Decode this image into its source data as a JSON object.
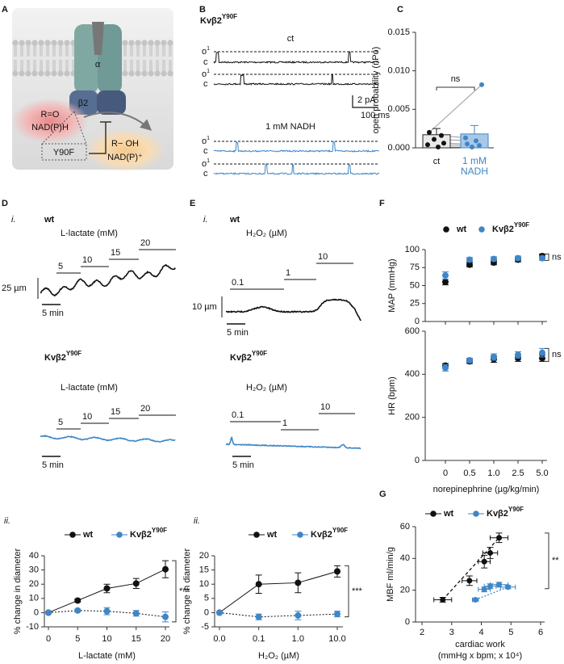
{
  "figure": {
    "panels": [
      "A",
      "B",
      "C",
      "D",
      "E",
      "F",
      "G"
    ],
    "A": {
      "alpha": "α",
      "beta": "β2",
      "substrate": "R=O",
      "cofactor": "NAD(P)H",
      "mutation": "Y90F",
      "product": "R− OH",
      "product_cofactor": "NAD(P)⁺"
    },
    "B": {
      "title": "Kvβ2",
      "title_sup": "Y90F",
      "control": "ct",
      "treatment": "1 mM NADH",
      "open": "o",
      "open_sub": "1",
      "closed": "c",
      "current_scale": "2 pA",
      "time_scale": "100 ms"
    },
    "D": {
      "part_i": "i.",
      "part_ii": "ii.",
      "wt": "wt",
      "mutant": "Kvβ2",
      "mutant_sup": "Y90F",
      "stimulus": "L-lactate (mM)",
      "steps": [
        "5",
        "10",
        "15",
        "20"
      ],
      "diameter_scale": "25 µm",
      "time_scale": "5 min"
    },
    "E": {
      "part_i": "i.",
      "part_ii": "ii.",
      "wt": "wt",
      "mutant": "Kvβ2",
      "mutant_sup": "Y90F",
      "stimulus": "H₂O₂ (µM)",
      "steps": [
        "0.1",
        "1",
        "10"
      ],
      "diameter_scale": "10 µm",
      "time_scale": "5 min"
    }
  },
  "chart_data": [
    {
      "type": "bar",
      "ylabel": "open probability (nPo)",
      "categories": [
        "ct",
        "1 mM NADH"
      ],
      "values": [
        0.0017,
        0.0018
      ],
      "errors": [
        0.0008,
        0.0011
      ],
      "points": [
        [
          0.002,
          0.0016,
          0.0011,
          0.0006,
          0.0004,
          0.0001
        ],
        [
          0.0082,
          0.0013,
          0.0009,
          0.0005,
          0.0003,
          0.0001
        ]
      ],
      "bar_colors": [
        "#e9e9e9",
        "#a9c8e6"
      ],
      "edge_colors": [
        "#222222",
        "#3f86c6"
      ],
      "point_colors": [
        "#111111",
        "#3f86c6"
      ],
      "ylim": [
        0,
        0.015
      ],
      "yticks": [
        {
          "value": 0,
          "label": "0.000"
        },
        0.005,
        {
          "value": 0.01,
          "label": "0.010"
        },
        0.015
      ],
      "annotation": "ns"
    },
    {
      "type": "line",
      "xlabel": "L-lactate (mM)",
      "ylabel": "% change in diameter",
      "x": [
        0,
        5,
        10,
        15,
        20
      ],
      "xlim": [
        0,
        20
      ],
      "xticks": [
        0,
        5,
        10,
        15,
        20
      ],
      "ylim": [
        -10,
        40
      ],
      "yticks": [
        -10,
        0,
        10,
        20,
        30,
        40
      ],
      "series": [
        {
          "name": "wt",
          "color": "#111111",
          "line_style": "solid",
          "values": [
            0,
            8.5,
            17,
            20.5,
            30.5
          ],
          "errors": [
            0,
            1,
            3,
            3.5,
            6
          ]
        },
        {
          "name": "Kvβ2",
          "name_sup": "Y90F",
          "color": "#3f86c6",
          "line_style": "dotted",
          "values": [
            0,
            1.5,
            1,
            -0.5,
            -3
          ],
          "errors": [
            0,
            1,
            2.5,
            2,
            3.5
          ]
        }
      ],
      "annotation": "***"
    },
    {
      "type": "line",
      "xlabel": "H₂O₂ (µM)",
      "ylabel": "% change in diameter",
      "categories": [
        "0.0",
        "0.1",
        "1.0",
        "10.0"
      ],
      "ylim": [
        -5,
        20
      ],
      "yticks": [
        -5,
        0,
        5,
        10,
        15,
        20
      ],
      "series": [
        {
          "name": "wt",
          "color": "#111111",
          "line_style": "solid",
          "values": [
            0,
            10,
            10.5,
            14.5
          ],
          "errors": [
            0,
            3.2,
            3.5,
            2
          ]
        },
        {
          "name": "Kvβ2",
          "name_sup": "Y90F",
          "color": "#3f86c6",
          "line_style": "dotted",
          "values": [
            0,
            -1.5,
            -1,
            -0.5
          ],
          "errors": [
            0,
            1,
            1.5,
            1
          ]
        }
      ],
      "annotation": "***"
    },
    {
      "type": "line",
      "ylabel": "MAP (mmHg)",
      "categories": [
        null,
        null,
        null,
        null,
        null
      ],
      "ylim": [
        0,
        100
      ],
      "yticks": [
        0,
        25,
        50,
        75,
        100
      ],
      "series": [
        {
          "name": "wt",
          "color": "#111111",
          "line_style": "none",
          "values": [
            55,
            79,
            82,
            86,
            91
          ],
          "errors": [
            4,
            3,
            3,
            3,
            3
          ]
        },
        {
          "name": "Kvβ2",
          "name_sup": "Y90F",
          "color": "#3f86c6",
          "line_style": "none",
          "values": [
            64,
            86,
            87,
            88,
            88
          ],
          "errors": [
            5,
            3,
            3,
            3,
            3
          ]
        }
      ],
      "annotation": "ns"
    },
    {
      "type": "line",
      "xlabel": "norepinephrine (µg/kg/min)",
      "ylabel": "HR (bpm)",
      "categories": [
        "0",
        "0.5",
        "1.0",
        "2.5",
        "5.0"
      ],
      "ylim": [
        0,
        600
      ],
      "yticks": [
        0,
        200,
        400,
        600
      ],
      "series": [
        {
          "color": "#111111",
          "line_style": "none",
          "values": [
            440,
            460,
            470,
            475,
            475
          ],
          "errors": [
            10,
            10,
            15,
            15,
            15
          ]
        },
        {
          "color": "#3f86c6",
          "line_style": "none",
          "values": [
            430,
            465,
            480,
            490,
            500
          ],
          "errors": [
            15,
            10,
            15,
            15,
            20
          ]
        }
      ],
      "annotation": "ns"
    },
    {
      "type": "scatter",
      "xlabel": "cardiac work",
      "xlabel_note": "(mmHg x bpm; x 10⁴)",
      "ylabel": "MBF ml/min/g",
      "xlim": [
        2,
        6
      ],
      "xticks": [
        2,
        3,
        4,
        5,
        6
      ],
      "ylim": [
        0,
        60
      ],
      "yticks": [
        0,
        20,
        40,
        60
      ],
      "series": [
        {
          "name": "wt",
          "color": "#111111",
          "line_style": "dashed",
          "x": [
            2.7,
            3.6,
            4.1,
            4.3,
            4.6
          ],
          "values": [
            14,
            26,
            38,
            43.5,
            53
          ],
          "x_errors": [
            0.3,
            0.25,
            0.2,
            0.25,
            0.3
          ],
          "errors": [
            1.5,
            3,
            4,
            3.5,
            3
          ]
        },
        {
          "name": "Kvβ2",
          "name_sup": "Y90F",
          "color": "#3f86c6",
          "line_style": "dotted",
          "x": [
            3.8,
            4.1,
            4.3,
            4.6,
            4.9
          ],
          "values": [
            14,
            20.5,
            22.5,
            23.5,
            22
          ],
          "x_errors": [
            0.1,
            0.2,
            0.2,
            0.3,
            0.25
          ],
          "errors": [
            0.5,
            1.5,
            1.5,
            1.5,
            1
          ]
        }
      ],
      "annotation": "**"
    }
  ]
}
